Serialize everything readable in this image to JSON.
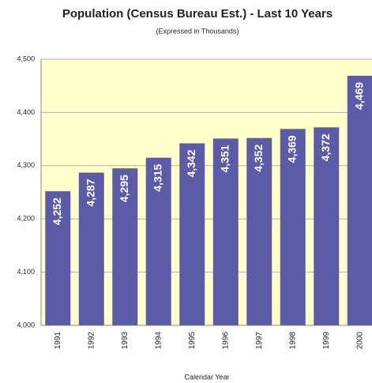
{
  "chart_data": {
    "type": "bar",
    "title": "Population (Census Bureau Est.) - Last 10 Years",
    "subtitle": "(Expressed in Thousands)",
    "x_label": "Calendar Year",
    "categories": [
      "1991",
      "1992",
      "1993",
      "1994",
      "1995",
      "1996",
      "1997",
      "1998",
      "1999",
      "2000"
    ],
    "values": [
      4252,
      4287,
      4295,
      4315,
      4342,
      4351,
      4352,
      4369,
      4372,
      4469
    ],
    "value_labels": [
      "4,252",
      "4,287",
      "4,295",
      "4,315",
      "4,342",
      "4,351",
      "4,352",
      "4,369",
      "4,372",
      "4,469"
    ],
    "color": "#5b5ba8",
    "background": "#ffffcc",
    "ylim": [
      4000,
      4500
    ],
    "yticks": [
      {
        "value": 4000,
        "label": "4,000"
      },
      {
        "value": 4100,
        "label": "4,100"
      },
      {
        "value": 4200,
        "label": "4,200"
      },
      {
        "value": 4300,
        "label": "4,300"
      },
      {
        "value": 4400,
        "label": "4,400"
      },
      {
        "value": 4500,
        "label": "4,500"
      }
    ],
    "grid": true
  }
}
